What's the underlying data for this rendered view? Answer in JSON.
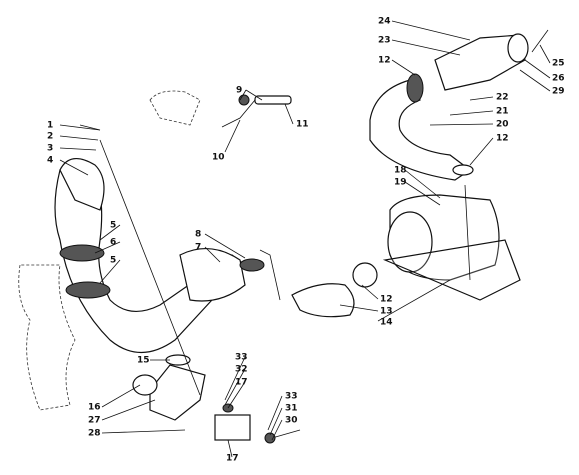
{
  "callouts": [
    "1",
    "2",
    "3",
    "4",
    "5",
    "6",
    "5",
    "7",
    "8",
    "9",
    "10",
    "11",
    "12",
    "24",
    "23",
    "25",
    "26",
    "29",
    "22",
    "21",
    "20",
    "12",
    "18",
    "19",
    "12",
    "13",
    "14",
    "15",
    "33",
    "32",
    "17",
    "16",
    "27",
    "28",
    "33",
    "31",
    "30",
    "17"
  ]
}
